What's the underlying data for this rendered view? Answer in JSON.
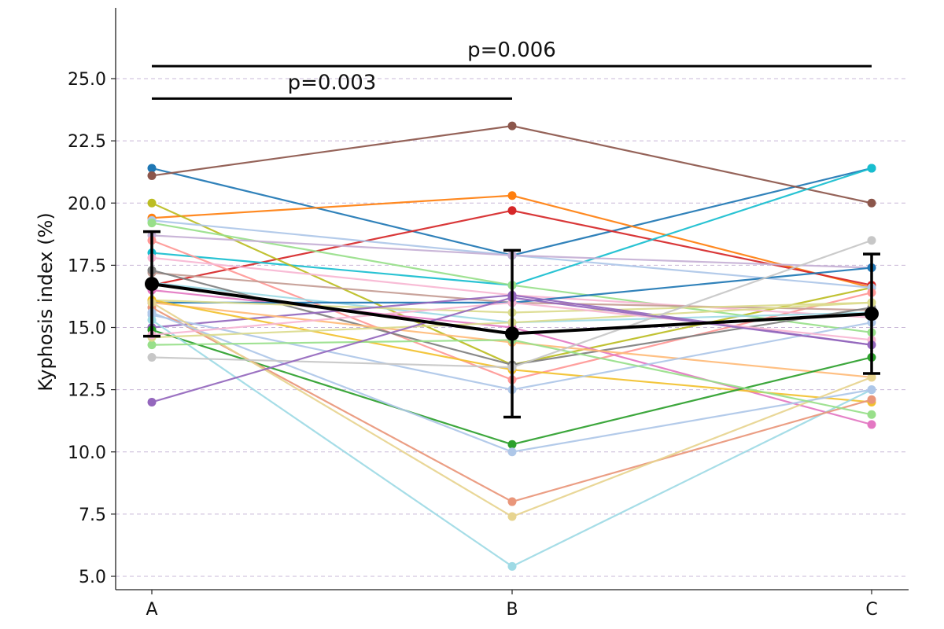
{
  "chart_data": {
    "type": "line",
    "categories": [
      "A",
      "B",
      "C"
    ],
    "ylabel": "Kyphosis index (%)",
    "xlabel": "",
    "ylim": [
      4.5,
      27.8
    ],
    "yticks": [
      "5.0",
      "7.5",
      "10.0",
      "12.5",
      "15.0",
      "17.5",
      "20.0",
      "22.5",
      "25.0"
    ],
    "grid": "horizontal dashed",
    "subjects": [
      {
        "color": "#1f77b4",
        "values": [
          21.4,
          17.9,
          21.4
        ]
      },
      {
        "color": "#8c564b",
        "values": [
          21.1,
          23.1,
          20.0
        ]
      },
      {
        "color": "#ff7f0e",
        "values": [
          19.4,
          20.3,
          16.6
        ]
      },
      {
        "color": "#d62728",
        "values": [
          16.7,
          19.7,
          16.7
        ]
      },
      {
        "color": "#17becf",
        "values": [
          18.0,
          16.7,
          21.4
        ]
      },
      {
        "color": "#bcbd22",
        "values": [
          20.0,
          13.5,
          16.6
        ]
      },
      {
        "color": "#aec7e8",
        "values": [
          19.3,
          17.9,
          16.6
        ]
      },
      {
        "color": "#98df8a",
        "values": [
          19.2,
          16.7,
          14.8
        ]
      },
      {
        "color": "#c5b0d5",
        "values": [
          18.7,
          17.9,
          17.4
        ]
      },
      {
        "color": "#ff9896",
        "values": [
          18.5,
          12.9,
          16.4
        ]
      },
      {
        "color": "#f7b6d2",
        "values": [
          17.8,
          16.3,
          15.4
        ]
      },
      {
        "color": "#c49c94",
        "values": [
          17.2,
          16.0,
          15.7
        ]
      },
      {
        "color": "#9edae5",
        "values": [
          16.8,
          15.2,
          15.6
        ]
      },
      {
        "color": "#7f7f7f",
        "values": [
          17.3,
          13.5,
          15.8
        ]
      },
      {
        "color": "#e377c2",
        "values": [
          16.5,
          15.0,
          11.1
        ]
      },
      {
        "color": "#1f77b4",
        "values": [
          16.0,
          16.0,
          17.4
        ]
      },
      {
        "color": "#dbdb8d",
        "values": [
          16.1,
          15.6,
          16.0
        ]
      },
      {
        "color": "#9467bd",
        "values": [
          15.0,
          16.3,
          14.3
        ]
      },
      {
        "color": "#ffbb78",
        "values": [
          16.0,
          14.4,
          13.0
        ]
      },
      {
        "color": "#f2c12e",
        "values": [
          16.1,
          13.3,
          12.0
        ]
      },
      {
        "color": "#aec7e8",
        "values": [
          15.5,
          12.5,
          15.2
        ]
      },
      {
        "color": "#2ca02c",
        "values": [
          14.9,
          10.3,
          13.8
        ]
      },
      {
        "color": "#9edae5",
        "values": [
          15.3,
          5.4,
          12.5
        ]
      },
      {
        "color": "#e9967a",
        "values": [
          15.8,
          8.0,
          12.1
        ]
      },
      {
        "color": "#e7d48f",
        "values": [
          16.0,
          7.4,
          13.0
        ]
      },
      {
        "color": "#aec7e8",
        "values": [
          15.6,
          10.0,
          12.5
        ]
      },
      {
        "color": "#98df8a",
        "values": [
          14.3,
          14.5,
          11.5
        ]
      },
      {
        "color": "#dbdb8d",
        "values": [
          14.6,
          15.2,
          16.0
        ]
      },
      {
        "color": "#f7b6d2",
        "values": [
          14.7,
          16.0,
          14.5
        ]
      },
      {
        "color": "#c7c7c7",
        "values": [
          13.8,
          13.4,
          18.5
        ]
      },
      {
        "color": "#9467bd",
        "values": [
          12.0,
          16.2,
          14.3
        ]
      }
    ],
    "mean": {
      "values": [
        16.75,
        14.75,
        15.55
      ],
      "error": [
        2.1,
        3.35,
        2.4
      ],
      "color": "#000000"
    },
    "annotations": [
      {
        "text": "p=0.003",
        "from": "A",
        "to": "B",
        "y": 24.2
      },
      {
        "text": "p=0.006",
        "from": "A",
        "to": "C",
        "y": 25.5
      }
    ]
  }
}
